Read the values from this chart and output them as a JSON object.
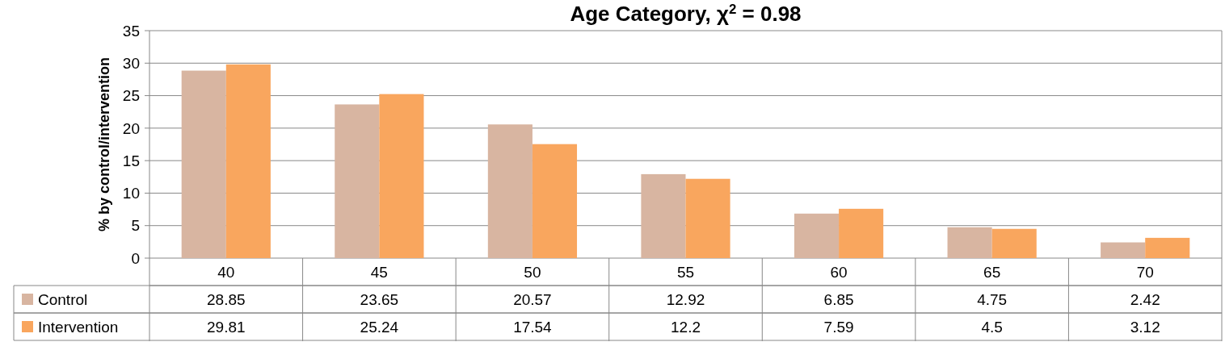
{
  "chart_data": {
    "type": "bar",
    "title": "Age Category, χ$^{2}$ = 0.98",
    "ylabel": "% by control/intervention",
    "categories": [
      "40",
      "45",
      "50",
      "55",
      "60",
      "65",
      "70"
    ],
    "series": [
      {
        "name": "Control",
        "color": "#d8b5a1",
        "values": [
          28.85,
          23.65,
          20.57,
          12.92,
          6.85,
          4.75,
          2.42
        ]
      },
      {
        "name": "Intervention",
        "color": "#f9a65e",
        "values": [
          29.81,
          25.24,
          17.54,
          12.2,
          7.59,
          4.5,
          3.12
        ]
      }
    ],
    "ylim": [
      0,
      35
    ],
    "yticks": [
      0,
      5,
      10,
      15,
      20,
      25,
      30,
      35
    ],
    "grid": "y",
    "legend": "bottom left",
    "data_labels": true
  }
}
